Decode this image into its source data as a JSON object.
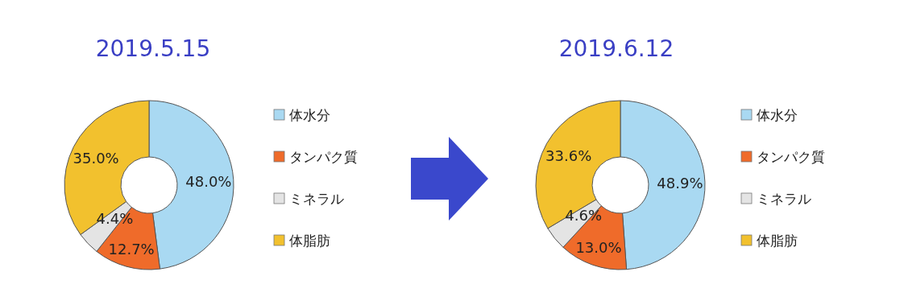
{
  "chart_data": [
    {
      "type": "donut",
      "title": "2019.5.15",
      "categories": [
        "体水分",
        "タンパク質",
        "ミネラル",
        "体脂肪"
      ],
      "values": [
        48.0,
        12.7,
        4.4,
        35.0
      ],
      "value_labels": [
        "48.0%",
        "12.7%",
        "4.4%",
        "35.0%"
      ],
      "colors": [
        "#a9d9f2",
        "#ef6b2a",
        "#e4e4e4",
        "#f2c12e"
      ],
      "legend": "right"
    },
    {
      "type": "donut",
      "title": "2019.6.12",
      "categories": [
        "体水分",
        "タンパク質",
        "ミネラル",
        "体脂肪"
      ],
      "values": [
        48.9,
        13.0,
        4.6,
        33.6
      ],
      "value_labels": [
        "48.9%",
        "13.0%",
        "4.6%",
        "33.6%"
      ],
      "colors": [
        "#a9d9f2",
        "#ef6b2a",
        "#e4e4e4",
        "#f2c12e"
      ],
      "legend": "right"
    }
  ]
}
